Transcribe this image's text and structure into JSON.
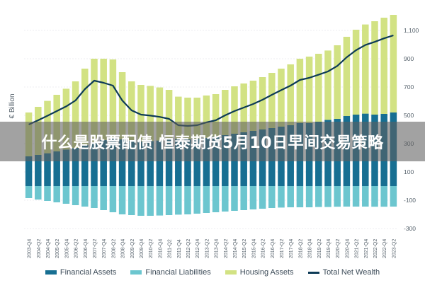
{
  "overlay_title": "什么是股票配债 恒泰期货5月10日早间交易策略",
  "chart_data": {
    "type": "bar",
    "ylabel": "€ Billion",
    "ylim": [
      -300,
      1250
    ],
    "yticks": [
      {
        "value": 1100,
        "label": "1,100"
      },
      {
        "value": 900,
        "label": "900"
      },
      {
        "value": 700,
        "label": "700"
      },
      {
        "value": 500,
        "label": "500"
      },
      {
        "value": 300,
        "label": "300"
      },
      {
        "value": 100,
        "label": "100"
      },
      {
        "value": -100,
        "label": "-100"
      },
      {
        "value": -300,
        "label": "-300"
      }
    ],
    "grid": true,
    "legend_position": "bottom",
    "colors": {
      "financial_assets": "#176f92",
      "financial_liabilities": "#6cc6cf",
      "housing_assets": "#d2e283",
      "total_net_wealth": "#0d3b57"
    },
    "categories": [
      "2003-Q4",
      "2004-Q2",
      "2004-Q4",
      "2005-Q2",
      "2005-Q4",
      "2006-Q2",
      "2006-Q4",
      "2007-Q2",
      "2007-Q4",
      "2008-Q2",
      "2008-Q4",
      "2009-Q2",
      "2009-Q4",
      "2010-Q2",
      "2010-Q4",
      "2011-Q2",
      "2011-Q4",
      "2012-Q2",
      "2012-Q4",
      "2013-Q2",
      "2013-Q4",
      "2014-Q2",
      "2014-Q4",
      "2015-Q2",
      "2015-Q4",
      "2016-Q2",
      "2016-Q4",
      "2017-Q2",
      "2017-Q4",
      "2018-Q2",
      "2018-Q4",
      "2019-Q2",
      "2019-Q4",
      "2020-Q2",
      "2020-Q4",
      "2021-Q2",
      "2021-Q4",
      "2022-Q2",
      "2022-Q4",
      "2023-Q2"
    ],
    "series": [
      {
        "name": "Financial Assets",
        "values": [
          210,
          220,
          232,
          245,
          258,
          270,
          290,
          310,
          325,
          335,
          330,
          320,
          315,
          318,
          322,
          330,
          332,
          330,
          335,
          340,
          350,
          360,
          370,
          380,
          390,
          400,
          410,
          420,
          430,
          445,
          445,
          455,
          468,
          475,
          495,
          505,
          512,
          505,
          510,
          520
        ]
      },
      {
        "name": "Financial Liabilities",
        "values": [
          -85,
          -95,
          -105,
          -115,
          -125,
          -135,
          -145,
          -155,
          -170,
          -185,
          -200,
          -205,
          -210,
          -210,
          -208,
          -205,
          -202,
          -200,
          -195,
          -190,
          -185,
          -180,
          -175,
          -170,
          -165,
          -160,
          -155,
          -152,
          -150,
          -150,
          -150,
          -148,
          -148,
          -146,
          -145,
          -145,
          -145,
          -146,
          -146,
          -145
        ]
      },
      {
        "name": "Housing Assets",
        "values": [
          310,
          340,
          370,
          400,
          430,
          470,
          540,
          590,
          575,
          560,
          475,
          420,
          400,
          390,
          375,
          350,
          300,
          295,
          290,
          300,
          300,
          320,
          335,
          345,
          355,
          370,
          390,
          410,
          430,
          455,
          470,
          480,
          490,
          520,
          560,
          600,
          630,
          660,
          680,
          690
        ]
      },
      {
        "name": "Total Net Wealth",
        "values": [
          435,
          465,
          497,
          530,
          563,
          605,
          685,
          745,
          730,
          710,
          605,
          535,
          505,
          498,
          489,
          475,
          430,
          425,
          430,
          450,
          465,
          500,
          530,
          555,
          580,
          610,
          645,
          678,
          710,
          750,
          765,
          787,
          810,
          849,
          910,
          960,
          997,
          1019,
          1044,
          1065
        ]
      }
    ]
  },
  "legend": [
    {
      "key": "financial_assets",
      "label": "Financial Assets",
      "kind": "bar"
    },
    {
      "key": "financial_liabilities",
      "label": "Financial Liabilities",
      "kind": "bar"
    },
    {
      "key": "housing_assets",
      "label": "Housing Assets",
      "kind": "bar"
    },
    {
      "key": "total_net_wealth",
      "label": "Total Net Wealth",
      "kind": "line"
    }
  ]
}
